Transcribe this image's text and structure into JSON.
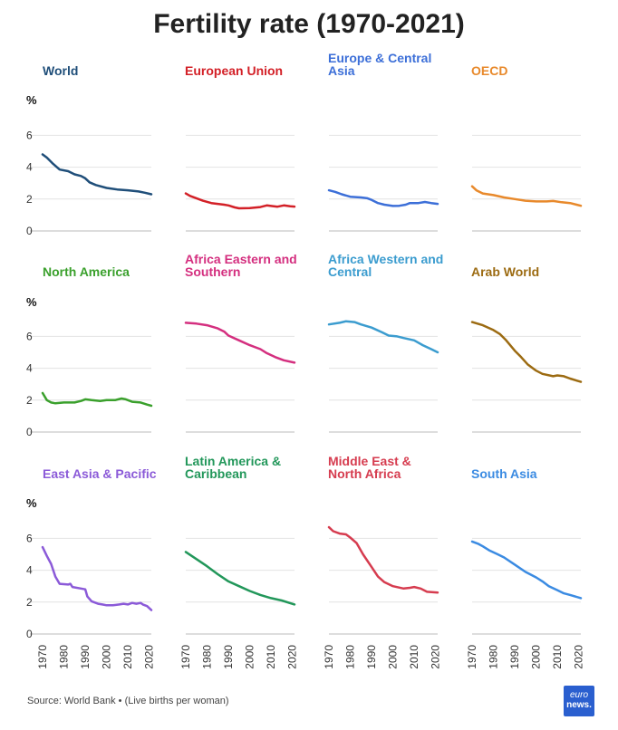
{
  "title": "Fertility rate (1970-2021)",
  "footer": {
    "source": "Source: World Bank • (Live births per woman)"
  },
  "logo": {
    "line1": "euro",
    "line2": "news."
  },
  "chart_data": {
    "type": "line",
    "title": "Fertility rate (1970-2021)",
    "ylabel": "%",
    "ylim": [
      0,
      7
    ],
    "yticks": [
      0,
      2,
      4,
      6
    ],
    "xlim": [
      1970,
      2021
    ],
    "xticks": [
      1970,
      1980,
      1990,
      2000,
      2010,
      2020
    ],
    "grid": "horizontal",
    "panels": [
      {
        "name": "World",
        "color": "#1f4e79",
        "points": [
          [
            1970,
            4.8
          ],
          [
            1972,
            4.6
          ],
          [
            1975,
            4.2
          ],
          [
            1978,
            3.85
          ],
          [
            1982,
            3.75
          ],
          [
            1985,
            3.55
          ],
          [
            1988,
            3.45
          ],
          [
            1990,
            3.3
          ],
          [
            1992,
            3.05
          ],
          [
            1995,
            2.88
          ],
          [
            2000,
            2.7
          ],
          [
            2005,
            2.6
          ],
          [
            2010,
            2.55
          ],
          [
            2015,
            2.48
          ],
          [
            2018,
            2.4
          ],
          [
            2021,
            2.3
          ]
        ]
      },
      {
        "name": "European Union",
        "color": "#d32027",
        "points": [
          [
            1970,
            2.35
          ],
          [
            1972,
            2.2
          ],
          [
            1975,
            2.05
          ],
          [
            1978,
            1.9
          ],
          [
            1982,
            1.75
          ],
          [
            1985,
            1.7
          ],
          [
            1988,
            1.65
          ],
          [
            1990,
            1.6
          ],
          [
            1993,
            1.48
          ],
          [
            1995,
            1.42
          ],
          [
            2000,
            1.43
          ],
          [
            2005,
            1.5
          ],
          [
            2008,
            1.6
          ],
          [
            2010,
            1.57
          ],
          [
            2013,
            1.52
          ],
          [
            2016,
            1.6
          ],
          [
            2019,
            1.55
          ],
          [
            2021,
            1.53
          ]
        ]
      },
      {
        "name": "Europe & Central Asia",
        "color": "#3c6fd8",
        "points": [
          [
            1970,
            2.55
          ],
          [
            1973,
            2.45
          ],
          [
            1976,
            2.3
          ],
          [
            1980,
            2.15
          ],
          [
            1985,
            2.1
          ],
          [
            1988,
            2.05
          ],
          [
            1990,
            1.95
          ],
          [
            1993,
            1.75
          ],
          [
            1996,
            1.65
          ],
          [
            2000,
            1.57
          ],
          [
            2003,
            1.58
          ],
          [
            2006,
            1.65
          ],
          [
            2008,
            1.75
          ],
          [
            2012,
            1.75
          ],
          [
            2015,
            1.82
          ],
          [
            2018,
            1.75
          ],
          [
            2021,
            1.7
          ]
        ]
      },
      {
        "name": "OECD",
        "color": "#e8892b",
        "points": [
          [
            1970,
            2.8
          ],
          [
            1972,
            2.55
          ],
          [
            1975,
            2.35
          ],
          [
            1980,
            2.25
          ],
          [
            1985,
            2.1
          ],
          [
            1990,
            2.0
          ],
          [
            1995,
            1.9
          ],
          [
            2000,
            1.85
          ],
          [
            2005,
            1.85
          ],
          [
            2008,
            1.88
          ],
          [
            2012,
            1.8
          ],
          [
            2016,
            1.75
          ],
          [
            2019,
            1.65
          ],
          [
            2021,
            1.58
          ]
        ]
      },
      {
        "name": "North America",
        "color": "#3aa02c",
        "points": [
          [
            1970,
            2.45
          ],
          [
            1972,
            2.0
          ],
          [
            1974,
            1.85
          ],
          [
            1976,
            1.8
          ],
          [
            1980,
            1.85
          ],
          [
            1985,
            1.85
          ],
          [
            1988,
            1.95
          ],
          [
            1990,
            2.05
          ],
          [
            1993,
            2.0
          ],
          [
            1997,
            1.95
          ],
          [
            2000,
            2.0
          ],
          [
            2004,
            2.0
          ],
          [
            2007,
            2.1
          ],
          [
            2009,
            2.05
          ],
          [
            2012,
            1.9
          ],
          [
            2016,
            1.85
          ],
          [
            2019,
            1.72
          ],
          [
            2021,
            1.65
          ]
        ]
      },
      {
        "name": "Africa Eastern and Southern",
        "color": "#d42f7f",
        "points": [
          [
            1970,
            6.85
          ],
          [
            1975,
            6.8
          ],
          [
            1980,
            6.7
          ],
          [
            1985,
            6.5
          ],
          [
            1988,
            6.3
          ],
          [
            1990,
            6.05
          ],
          [
            1995,
            5.75
          ],
          [
            2000,
            5.45
          ],
          [
            2005,
            5.2
          ],
          [
            2008,
            4.95
          ],
          [
            2012,
            4.7
          ],
          [
            2016,
            4.5
          ],
          [
            2021,
            4.35
          ]
        ]
      },
      {
        "name": "Africa Western and Central",
        "color": "#3b9ccf",
        "points": [
          [
            1970,
            6.75
          ],
          [
            1975,
            6.85
          ],
          [
            1978,
            6.95
          ],
          [
            1982,
            6.9
          ],
          [
            1985,
            6.75
          ],
          [
            1990,
            6.55
          ],
          [
            1995,
            6.25
          ],
          [
            1998,
            6.05
          ],
          [
            2002,
            6.0
          ],
          [
            2005,
            5.9
          ],
          [
            2010,
            5.75
          ],
          [
            2014,
            5.45
          ],
          [
            2018,
            5.2
          ],
          [
            2021,
            5.0
          ]
        ]
      },
      {
        "name": "Arab World",
        "color": "#9c6b12",
        "points": [
          [
            1970,
            6.9
          ],
          [
            1975,
            6.7
          ],
          [
            1980,
            6.4
          ],
          [
            1983,
            6.15
          ],
          [
            1986,
            5.75
          ],
          [
            1990,
            5.1
          ],
          [
            1993,
            4.7
          ],
          [
            1996,
            4.25
          ],
          [
            2000,
            3.85
          ],
          [
            2003,
            3.65
          ],
          [
            2008,
            3.5
          ],
          [
            2010,
            3.55
          ],
          [
            2013,
            3.5
          ],
          [
            2016,
            3.35
          ],
          [
            2021,
            3.15
          ]
        ]
      },
      {
        "name": "East Asia & Pacific",
        "color": "#8b5ad8",
        "points": [
          [
            1970,
            5.45
          ],
          [
            1972,
            4.9
          ],
          [
            1974,
            4.4
          ],
          [
            1976,
            3.6
          ],
          [
            1978,
            3.15
          ],
          [
            1982,
            3.1
          ],
          [
            1983,
            3.15
          ],
          [
            1984,
            2.95
          ],
          [
            1988,
            2.85
          ],
          [
            1990,
            2.8
          ],
          [
            1991,
            2.35
          ],
          [
            1993,
            2.05
          ],
          [
            1996,
            1.9
          ],
          [
            1998,
            1.85
          ],
          [
            2000,
            1.8
          ],
          [
            2003,
            1.8
          ],
          [
            2006,
            1.85
          ],
          [
            2008,
            1.9
          ],
          [
            2010,
            1.85
          ],
          [
            2012,
            1.95
          ],
          [
            2014,
            1.9
          ],
          [
            2016,
            1.95
          ],
          [
            2017,
            1.85
          ],
          [
            2019,
            1.75
          ],
          [
            2021,
            1.5
          ]
        ]
      },
      {
        "name": "Latin America & Caribbean",
        "color": "#22975a",
        "points": [
          [
            1970,
            5.15
          ],
          [
            1975,
            4.7
          ],
          [
            1980,
            4.25
          ],
          [
            1985,
            3.75
          ],
          [
            1990,
            3.3
          ],
          [
            1995,
            3.0
          ],
          [
            2000,
            2.7
          ],
          [
            2005,
            2.45
          ],
          [
            2010,
            2.25
          ],
          [
            2015,
            2.1
          ],
          [
            2021,
            1.85
          ]
        ]
      },
      {
        "name": "Middle East & North Africa",
        "color": "#d63c4f",
        "points": [
          [
            1970,
            6.7
          ],
          [
            1972,
            6.45
          ],
          [
            1975,
            6.3
          ],
          [
            1978,
            6.25
          ],
          [
            1980,
            6.05
          ],
          [
            1983,
            5.7
          ],
          [
            1986,
            5.0
          ],
          [
            1990,
            4.2
          ],
          [
            1993,
            3.6
          ],
          [
            1996,
            3.25
          ],
          [
            2000,
            3.0
          ],
          [
            2005,
            2.85
          ],
          [
            2008,
            2.9
          ],
          [
            2010,
            2.95
          ],
          [
            2013,
            2.85
          ],
          [
            2016,
            2.65
          ],
          [
            2021,
            2.6
          ]
        ]
      },
      {
        "name": "South Asia",
        "color": "#3b8be2",
        "points": [
          [
            1970,
            5.8
          ],
          [
            1973,
            5.65
          ],
          [
            1975,
            5.5
          ],
          [
            1978,
            5.25
          ],
          [
            1982,
            5.0
          ],
          [
            1985,
            4.8
          ],
          [
            1990,
            4.35
          ],
          [
            1995,
            3.9
          ],
          [
            2000,
            3.55
          ],
          [
            2003,
            3.3
          ],
          [
            2006,
            3.0
          ],
          [
            2010,
            2.75
          ],
          [
            2013,
            2.55
          ],
          [
            2016,
            2.45
          ],
          [
            2021,
            2.25
          ]
        ]
      }
    ]
  }
}
